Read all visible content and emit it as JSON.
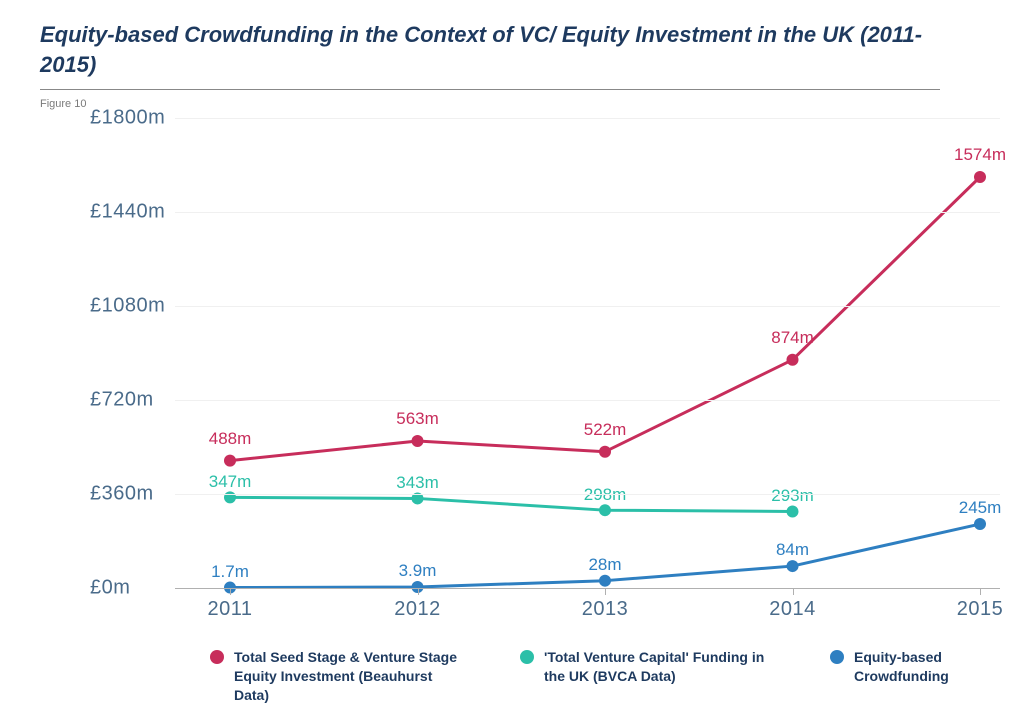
{
  "title": "Equity-based Crowdfunding in the Context of VC/ Equity Investment in the UK (2011-2015)",
  "figureLabel": "Figure 10",
  "chart": {
    "type": "line",
    "background_color": "#ffffff",
    "grid_color": "#f0f0f0",
    "axis_color": "#b0b0b0",
    "tick_color": "#4a6b8a",
    "tick_fontsize": 20,
    "label_fontsize": 17,
    "line_width": 3,
    "marker_radius": 6,
    "xvals": [
      2011,
      2012,
      2013,
      2014,
      2015
    ],
    "xlim": [
      2011,
      2015
    ],
    "ylim": [
      0,
      1800
    ],
    "yticks": [
      0,
      360,
      720,
      1080,
      1440,
      1800
    ],
    "ytick_labels": [
      "£0m",
      "£360m",
      "£720m",
      "£1080m",
      "£1440m",
      "£1800m"
    ],
    "xtick_labels": [
      "2011",
      "2012",
      "2013",
      "2014",
      "2015"
    ],
    "series": [
      {
        "name": "Total Seed Stage & Venture Stage Equity Investment (Beauhurst Data)",
        "color": "#c72d5b",
        "values": [
          488,
          563,
          522,
          874,
          1574
        ],
        "labels": [
          "488m",
          "563m",
          "522m",
          "874m",
          "1574m"
        ]
      },
      {
        "name": "'Total Venture Capital' Funding in the UK (BVCA Data)",
        "color": "#2bbfa8",
        "values": [
          347,
          343,
          298,
          293,
          null
        ],
        "labels": [
          "347m",
          "343m",
          "298m",
          "293m",
          null
        ]
      },
      {
        "name": "Equity-based Crowdfunding",
        "color": "#2e7fc1",
        "values": [
          1.7,
          3.9,
          28,
          84,
          245
        ],
        "labels": [
          "1.7m",
          "3.9m",
          "28m",
          "84m",
          "245m"
        ]
      }
    ],
    "legend_items": [
      {
        "color": "#c72d5b",
        "label": "Total Seed Stage & Venture Stage Equity Investment (Beauhurst Data)"
      },
      {
        "color": "#2bbfa8",
        "label": "'Total Venture Capital' Funding in the UK (BVCA Data)"
      },
      {
        "color": "#2e7fc1",
        "label": "Equity-based Crowdfunding"
      }
    ]
  }
}
